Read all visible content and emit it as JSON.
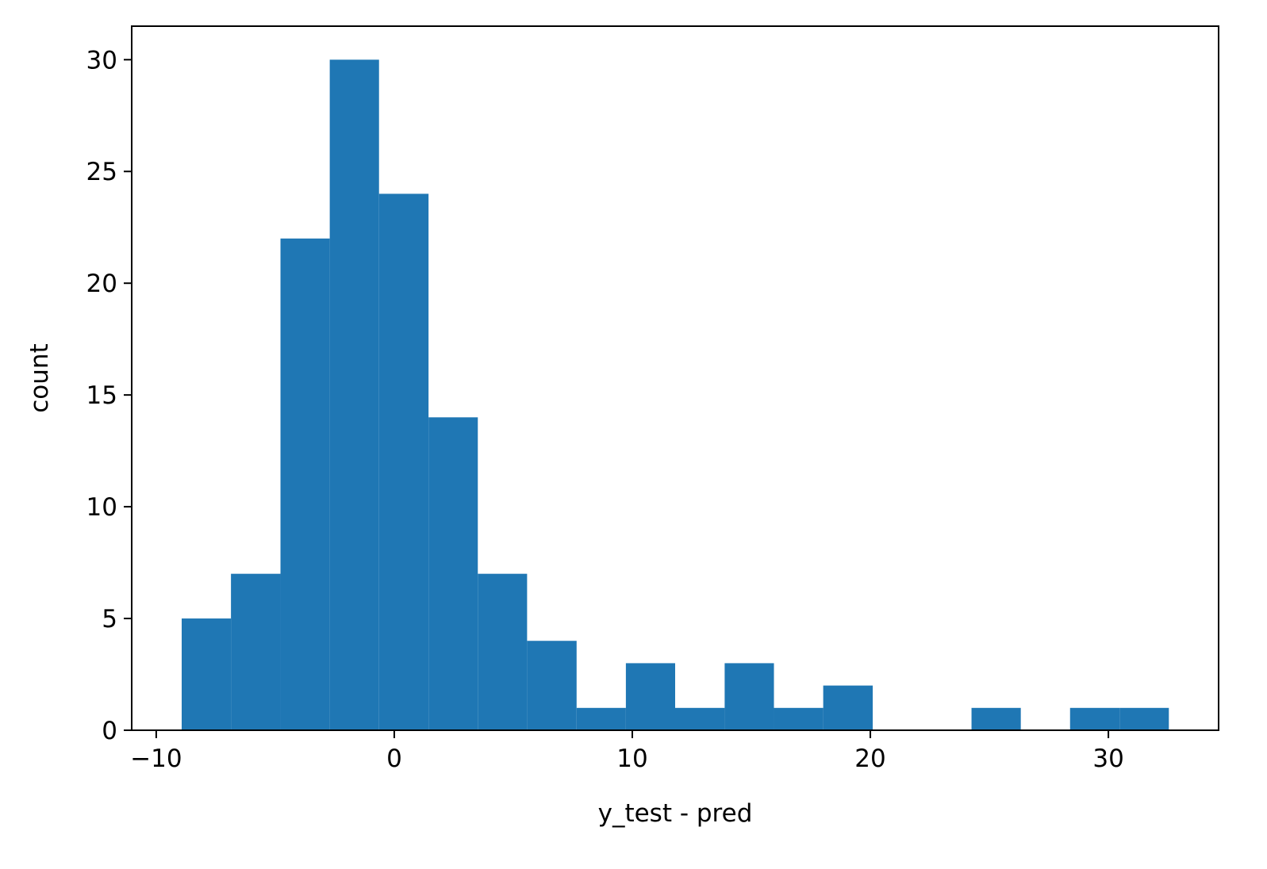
{
  "chart_data": {
    "type": "histogram",
    "x_label": "y_test - pred",
    "y_label": "count",
    "bins": [
      -8.93,
      -6.86,
      -4.78,
      -2.71,
      -0.64,
      1.44,
      3.51,
      5.58,
      7.66,
      9.73,
      11.8,
      13.88,
      15.95,
      18.02,
      20.1,
      22.17,
      24.25,
      26.32,
      28.39,
      30.47,
      32.54
    ],
    "counts": [
      5,
      7,
      22,
      30,
      24,
      14,
      7,
      4,
      1,
      3,
      1,
      3,
      1,
      2,
      0,
      0,
      1,
      0,
      1,
      1
    ],
    "color": "#1f77b4",
    "xlim": [
      -11.03,
      34.63
    ],
    "xticks": [
      {
        "value": -10,
        "label": "−10"
      },
      0,
      10,
      20,
      30
    ],
    "ylim": [
      0,
      31.5
    ],
    "yticks": [
      0,
      5,
      10,
      15,
      20,
      25,
      30
    ]
  }
}
